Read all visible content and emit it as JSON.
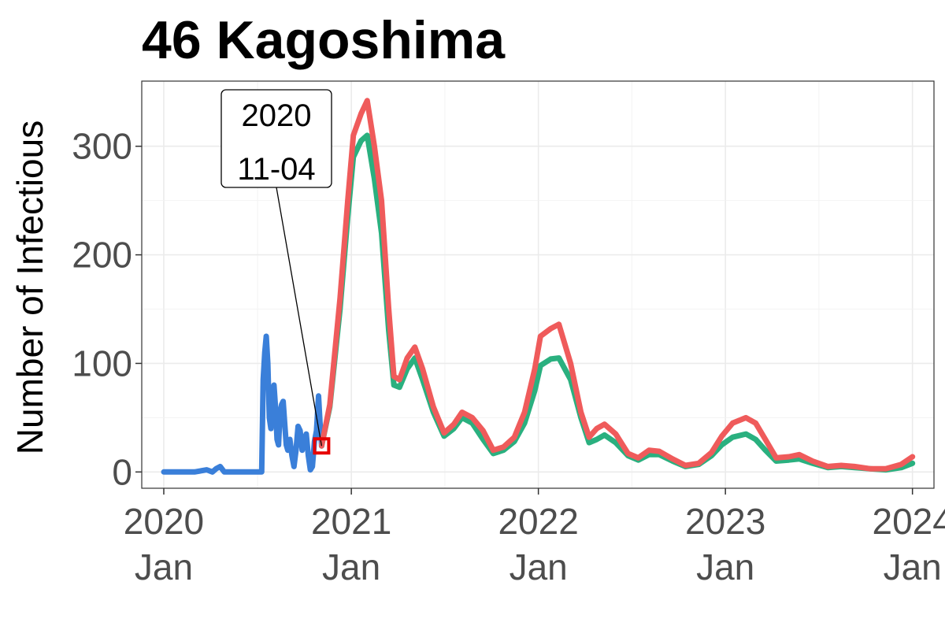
{
  "chart_data": {
    "type": "line",
    "title": "46 Kagoshima",
    "xlabel": "",
    "ylabel": "Number of Infectious",
    "x_axis": {
      "type": "date",
      "range": [
        "2019-11-19",
        "2024-02-12"
      ],
      "ticks": [
        {
          "date": "2020-01-01",
          "line1": "2020",
          "line2": "Jan"
        },
        {
          "date": "2021-01-01",
          "line1": "2021",
          "line2": "Jan"
        },
        {
          "date": "2022-01-01",
          "line1": "2022",
          "line2": "Jan"
        },
        {
          "date": "2023-01-01",
          "line1": "2023",
          "line2": "Jan"
        },
        {
          "date": "2024-01-01",
          "line1": "2024",
          "line2": "Jan"
        }
      ]
    },
    "y_axis": {
      "range": [
        -15,
        360
      ],
      "ticks": [
        0,
        100,
        200,
        300
      ]
    },
    "grid": true,
    "legend": "none",
    "series": [
      {
        "color": "#3a7fd9",
        "points": [
          [
            "2020-01-01",
            0
          ],
          [
            "2020-03-01",
            0
          ],
          [
            "2020-03-25",
            2
          ],
          [
            "2020-04-05",
            0
          ],
          [
            "2020-04-12",
            3
          ],
          [
            "2020-04-20",
            5
          ],
          [
            "2020-04-28",
            0
          ],
          [
            "2020-06-01",
            0
          ],
          [
            "2020-07-01",
            0
          ],
          [
            "2020-07-10",
            0
          ],
          [
            "2020-07-13",
            85
          ],
          [
            "2020-07-16",
            110
          ],
          [
            "2020-07-19",
            125
          ],
          [
            "2020-07-22",
            100
          ],
          [
            "2020-07-25",
            50
          ],
          [
            "2020-07-28",
            40
          ],
          [
            "2020-07-31",
            60
          ],
          [
            "2020-08-03",
            80
          ],
          [
            "2020-08-06",
            60
          ],
          [
            "2020-08-09",
            30
          ],
          [
            "2020-08-12",
            25
          ],
          [
            "2020-08-15",
            55
          ],
          [
            "2020-08-18",
            62
          ],
          [
            "2020-08-21",
            65
          ],
          [
            "2020-08-24",
            45
          ],
          [
            "2020-08-27",
            25
          ],
          [
            "2020-08-30",
            20
          ],
          [
            "2020-09-03",
            30
          ],
          [
            "2020-09-07",
            15
          ],
          [
            "2020-09-11",
            5
          ],
          [
            "2020-09-15",
            20
          ],
          [
            "2020-09-19",
            42
          ],
          [
            "2020-09-23",
            38
          ],
          [
            "2020-09-27",
            20
          ],
          [
            "2020-10-01",
            30
          ],
          [
            "2020-10-05",
            35
          ],
          [
            "2020-10-09",
            15
          ],
          [
            "2020-10-13",
            2
          ],
          [
            "2020-10-17",
            5
          ],
          [
            "2020-10-21",
            28
          ],
          [
            "2020-10-25",
            38
          ],
          [
            "2020-10-29",
            70
          ],
          [
            "2020-11-01",
            45
          ],
          [
            "2020-11-04",
            24
          ]
        ]
      },
      {
        "color": "#2ab07f",
        "points": [
          [
            "2020-11-04",
            24
          ],
          [
            "2020-11-20",
            60
          ],
          [
            "2020-12-10",
            150
          ],
          [
            "2020-12-25",
            235
          ],
          [
            "2021-01-05",
            290
          ],
          [
            "2021-01-20",
            305
          ],
          [
            "2021-02-01",
            310
          ],
          [
            "2021-02-15",
            270
          ],
          [
            "2021-03-01",
            220
          ],
          [
            "2021-03-15",
            130
          ],
          [
            "2021-03-25",
            80
          ],
          [
            "2021-04-05",
            78
          ],
          [
            "2021-04-20",
            95
          ],
          [
            "2021-05-05",
            105
          ],
          [
            "2021-05-20",
            85
          ],
          [
            "2021-06-10",
            55
          ],
          [
            "2021-07-01",
            33
          ],
          [
            "2021-07-20",
            40
          ],
          [
            "2021-08-05",
            50
          ],
          [
            "2021-08-25",
            45
          ],
          [
            "2021-09-15",
            30
          ],
          [
            "2021-10-05",
            17
          ],
          [
            "2021-10-25",
            20
          ],
          [
            "2021-11-15",
            28
          ],
          [
            "2021-12-05",
            45
          ],
          [
            "2021-12-25",
            75
          ],
          [
            "2022-01-05",
            98
          ],
          [
            "2022-01-25",
            104
          ],
          [
            "2022-02-10",
            105
          ],
          [
            "2022-03-05",
            85
          ],
          [
            "2022-03-25",
            50
          ],
          [
            "2022-04-10",
            27
          ],
          [
            "2022-04-25",
            30
          ],
          [
            "2022-05-10",
            34
          ],
          [
            "2022-06-01",
            27
          ],
          [
            "2022-06-25",
            15
          ],
          [
            "2022-07-15",
            11
          ],
          [
            "2022-08-05",
            16
          ],
          [
            "2022-08-25",
            16
          ],
          [
            "2022-09-20",
            10
          ],
          [
            "2022-10-15",
            5
          ],
          [
            "2022-11-10",
            7
          ],
          [
            "2022-12-05",
            15
          ],
          [
            "2022-12-25",
            25
          ],
          [
            "2023-01-15",
            32
          ],
          [
            "2023-02-10",
            35
          ],
          [
            "2023-03-01",
            30
          ],
          [
            "2023-03-20",
            20
          ],
          [
            "2023-04-10",
            10
          ],
          [
            "2023-05-05",
            11
          ],
          [
            "2023-05-25",
            12
          ],
          [
            "2023-06-20",
            8
          ],
          [
            "2023-07-20",
            4
          ],
          [
            "2023-08-15",
            5
          ],
          [
            "2023-09-10",
            4
          ],
          [
            "2023-10-10",
            3
          ],
          [
            "2023-11-10",
            2
          ],
          [
            "2023-12-10",
            4
          ],
          [
            "2024-01-01",
            8
          ]
        ]
      },
      {
        "color": "#ef5b5b",
        "points": [
          [
            "2020-11-04",
            24
          ],
          [
            "2020-11-20",
            62
          ],
          [
            "2020-12-10",
            160
          ],
          [
            "2020-12-25",
            250
          ],
          [
            "2021-01-05",
            310
          ],
          [
            "2021-01-20",
            330
          ],
          [
            "2021-02-01",
            342
          ],
          [
            "2021-02-15",
            300
          ],
          [
            "2021-03-01",
            250
          ],
          [
            "2021-03-15",
            150
          ],
          [
            "2021-03-25",
            88
          ],
          [
            "2021-04-05",
            85
          ],
          [
            "2021-04-20",
            105
          ],
          [
            "2021-05-05",
            115
          ],
          [
            "2021-05-20",
            95
          ],
          [
            "2021-06-10",
            60
          ],
          [
            "2021-07-01",
            36
          ],
          [
            "2021-07-20",
            44
          ],
          [
            "2021-08-05",
            55
          ],
          [
            "2021-08-25",
            50
          ],
          [
            "2021-09-15",
            38
          ],
          [
            "2021-10-05",
            20
          ],
          [
            "2021-10-25",
            23
          ],
          [
            "2021-11-15",
            32
          ],
          [
            "2021-12-05",
            55
          ],
          [
            "2021-12-25",
            95
          ],
          [
            "2022-01-05",
            125
          ],
          [
            "2022-01-25",
            132
          ],
          [
            "2022-02-10",
            136
          ],
          [
            "2022-03-05",
            100
          ],
          [
            "2022-03-25",
            55
          ],
          [
            "2022-04-10",
            32
          ],
          [
            "2022-04-25",
            40
          ],
          [
            "2022-05-10",
            44
          ],
          [
            "2022-06-01",
            35
          ],
          [
            "2022-06-25",
            17
          ],
          [
            "2022-07-15",
            13
          ],
          [
            "2022-08-05",
            20
          ],
          [
            "2022-08-25",
            19
          ],
          [
            "2022-09-20",
            12
          ],
          [
            "2022-10-15",
            6
          ],
          [
            "2022-11-10",
            8
          ],
          [
            "2022-12-05",
            18
          ],
          [
            "2022-12-25",
            33
          ],
          [
            "2023-01-15",
            45
          ],
          [
            "2023-02-10",
            50
          ],
          [
            "2023-03-01",
            45
          ],
          [
            "2023-03-20",
            30
          ],
          [
            "2023-04-10",
            13
          ],
          [
            "2023-05-05",
            14
          ],
          [
            "2023-05-25",
            16
          ],
          [
            "2023-06-20",
            10
          ],
          [
            "2023-07-20",
            5
          ],
          [
            "2023-08-15",
            6
          ],
          [
            "2023-09-10",
            5
          ],
          [
            "2023-10-10",
            3
          ],
          [
            "2023-11-10",
            3
          ],
          [
            "2023-12-10",
            7
          ],
          [
            "2024-01-01",
            14
          ]
        ]
      }
    ],
    "annotation": {
      "date": "2020-11-04",
      "value": 24,
      "line1": "2020",
      "line2": "11-04",
      "marker_color": "#e60000"
    }
  }
}
